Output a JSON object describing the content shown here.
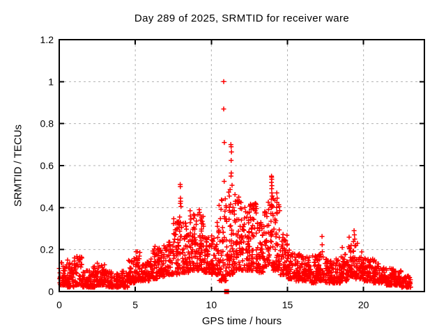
{
  "chart_data": {
    "type": "scatter",
    "title": "Day 289 of 2025, SRMTID for receiver ware",
    "xlabel": "GPS time / hours",
    "ylabel": "SRMTID / TECUs",
    "xlim": [
      0,
      24
    ],
    "ylim": [
      0,
      1.2
    ],
    "xticks": [
      0,
      5,
      10,
      15,
      20
    ],
    "yticks": [
      0,
      0.2,
      0.4,
      0.6,
      0.8,
      1,
      1.2
    ],
    "ytick_labels": [
      "0",
      "0.2",
      "0.4",
      "0.6",
      "0.8",
      "1",
      "1.2"
    ],
    "x_data_range": [
      0,
      23.1
    ],
    "grid": {
      "show": true,
      "color": "#b0b0b0",
      "dash": "3,4"
    },
    "axis_color": "#000000",
    "background": "#ffffff",
    "marker": {
      "shape": "plus",
      "size": 7,
      "color": "#ff0000"
    },
    "legend": "none",
    "series_name": "SRMTID",
    "seed": 2025289,
    "band_bias_power": 1.7,
    "band_envelope": [
      [
        0.0,
        0.5,
        0.03,
        0.14,
        45
      ],
      [
        0.5,
        1.0,
        0.02,
        0.15,
        45
      ],
      [
        1.0,
        1.5,
        0.03,
        0.17,
        45
      ],
      [
        1.5,
        2.0,
        0.02,
        0.1,
        45
      ],
      [
        2.0,
        2.5,
        0.02,
        0.12,
        45
      ],
      [
        2.5,
        3.0,
        0.03,
        0.13,
        45
      ],
      [
        3.0,
        3.5,
        0.02,
        0.1,
        45
      ],
      [
        3.5,
        4.0,
        0.02,
        0.09,
        45
      ],
      [
        4.0,
        4.5,
        0.02,
        0.1,
        45
      ],
      [
        4.5,
        5.0,
        0.04,
        0.16,
        45
      ],
      [
        5.0,
        5.5,
        0.05,
        0.19,
        46
      ],
      [
        5.5,
        6.0,
        0.05,
        0.15,
        46
      ],
      [
        6.0,
        6.5,
        0.06,
        0.21,
        48
      ],
      [
        6.5,
        7.0,
        0.07,
        0.22,
        48
      ],
      [
        7.0,
        7.5,
        0.08,
        0.24,
        50
      ],
      [
        7.5,
        8.0,
        0.08,
        0.37,
        55
      ],
      [
        8.0,
        8.5,
        0.09,
        0.33,
        55
      ],
      [
        8.5,
        9.0,
        0.1,
        0.39,
        55
      ],
      [
        9.0,
        9.5,
        0.1,
        0.39,
        55
      ],
      [
        9.5,
        10.0,
        0.09,
        0.3,
        55
      ],
      [
        10.0,
        10.5,
        0.08,
        0.33,
        55
      ],
      [
        10.5,
        11.0,
        0.05,
        0.45,
        58
      ],
      [
        11.0,
        11.5,
        0.08,
        0.52,
        60
      ],
      [
        11.5,
        12.0,
        0.1,
        0.48,
        60
      ],
      [
        12.0,
        12.5,
        0.1,
        0.38,
        55
      ],
      [
        12.5,
        13.0,
        0.1,
        0.42,
        55
      ],
      [
        13.0,
        13.5,
        0.09,
        0.33,
        55
      ],
      [
        13.5,
        14.0,
        0.12,
        0.45,
        55
      ],
      [
        14.0,
        14.5,
        0.1,
        0.45,
        55
      ],
      [
        14.5,
        15.0,
        0.08,
        0.28,
        52
      ],
      [
        15.0,
        15.5,
        0.06,
        0.2,
        50
      ],
      [
        15.5,
        16.0,
        0.05,
        0.18,
        50
      ],
      [
        16.0,
        16.5,
        0.05,
        0.17,
        48
      ],
      [
        16.5,
        17.0,
        0.04,
        0.17,
        48
      ],
      [
        17.0,
        17.5,
        0.05,
        0.18,
        48
      ],
      [
        17.5,
        18.0,
        0.04,
        0.16,
        48
      ],
      [
        18.0,
        18.5,
        0.04,
        0.16,
        48
      ],
      [
        18.5,
        19.0,
        0.05,
        0.18,
        48
      ],
      [
        19.0,
        19.5,
        0.07,
        0.26,
        50
      ],
      [
        19.5,
        20.0,
        0.06,
        0.21,
        48
      ],
      [
        20.0,
        20.5,
        0.05,
        0.16,
        46
      ],
      [
        20.5,
        21.0,
        0.04,
        0.15,
        46
      ],
      [
        21.0,
        21.5,
        0.04,
        0.12,
        46
      ],
      [
        21.5,
        22.0,
        0.03,
        0.11,
        46
      ],
      [
        22.0,
        22.5,
        0.03,
        0.1,
        46
      ],
      [
        22.5,
        23.1,
        0.02,
        0.08,
        50
      ]
    ],
    "feature_points": [
      [
        0.55,
        0.15
      ],
      [
        1.35,
        0.165
      ],
      [
        2.5,
        0.135
      ],
      [
        5.05,
        0.19
      ],
      [
        6.3,
        0.215
      ],
      [
        7.2,
        0.235
      ],
      [
        7.75,
        0.3
      ],
      [
        7.8,
        0.33
      ],
      [
        7.95,
        0.51
      ],
      [
        7.96,
        0.5
      ],
      [
        7.97,
        0.445
      ],
      [
        7.98,
        0.43
      ],
      [
        7.96,
        0.42
      ],
      [
        8.0,
        0.405
      ],
      [
        8.6,
        0.385
      ],
      [
        8.62,
        0.36
      ],
      [
        8.65,
        0.345
      ],
      [
        9.2,
        0.39
      ],
      [
        9.25,
        0.365
      ],
      [
        9.3,
        0.34
      ],
      [
        10.81,
        1.0
      ],
      [
        10.81,
        0.87
      ],
      [
        10.85,
        0.71
      ],
      [
        10.84,
        0.525
      ],
      [
        11.28,
        0.7
      ],
      [
        11.3,
        0.69
      ],
      [
        11.32,
        0.665
      ],
      [
        11.3,
        0.625
      ],
      [
        11.31,
        0.565
      ],
      [
        11.29,
        0.55
      ],
      [
        11.8,
        0.45
      ],
      [
        11.85,
        0.43
      ],
      [
        12.2,
        0.4
      ],
      [
        12.25,
        0.38
      ],
      [
        12.9,
        0.42
      ],
      [
        12.92,
        0.405
      ],
      [
        12.88,
        0.385
      ],
      [
        13.95,
        0.55
      ],
      [
        13.96,
        0.545
      ],
      [
        13.97,
        0.535
      ],
      [
        13.95,
        0.52
      ],
      [
        13.98,
        0.505
      ],
      [
        13.96,
        0.49
      ],
      [
        13.97,
        0.47
      ],
      [
        14.0,
        0.455
      ],
      [
        13.94,
        0.44
      ],
      [
        14.3,
        0.47
      ],
      [
        14.32,
        0.445
      ],
      [
        14.31,
        0.425
      ],
      [
        14.29,
        0.4
      ],
      [
        17.27,
        0.263
      ],
      [
        17.28,
        0.223
      ],
      [
        17.29,
        0.19
      ],
      [
        18.6,
        0.21
      ],
      [
        19.38,
        0.29
      ],
      [
        19.4,
        0.27
      ],
      [
        19.42,
        0.25
      ],
      [
        19.6,
        0.23
      ],
      [
        20.6,
        0.155
      ]
    ],
    "gap_marker": {
      "x": 11.0,
      "y": 0.0,
      "shape": "filled-square",
      "color": "#ff0000"
    }
  }
}
